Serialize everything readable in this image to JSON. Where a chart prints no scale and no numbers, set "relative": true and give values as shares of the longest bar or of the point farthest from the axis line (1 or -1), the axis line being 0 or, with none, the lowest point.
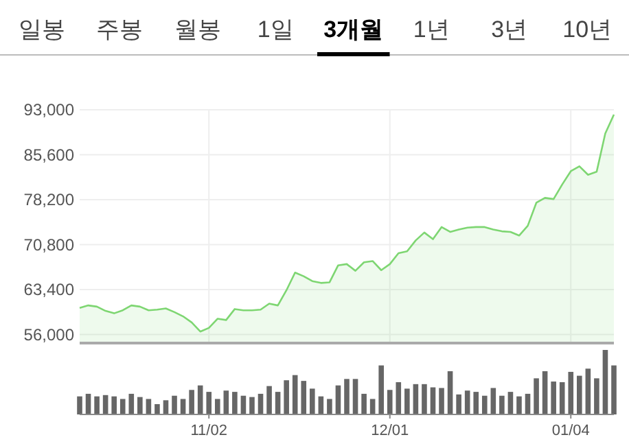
{
  "chart_data": [
    {
      "type": "area",
      "annotations": [
        "일봉",
        "주봉",
        "월봉",
        "1일",
        "3개월",
        "1년",
        "3년",
        "10년"
      ],
      "categories": [
        null,
        null,
        null,
        null,
        null,
        null,
        null,
        null,
        null,
        null,
        null,
        null,
        null,
        null,
        null,
        null,
        null,
        null,
        null,
        null,
        null,
        null,
        null,
        null,
        null,
        null,
        null,
        null,
        null,
        null,
        null,
        null,
        null,
        null,
        null,
        null,
        null,
        null,
        null,
        null,
        null,
        null,
        null,
        null,
        null,
        null,
        null,
        null,
        null,
        null,
        null,
        null,
        null,
        null,
        null,
        null,
        null,
        null,
        null,
        null,
        null,
        null,
        null
      ],
      "series": [
        {
          "color": "#7ed672",
          "values": [
            60400,
            60800,
            60600,
            59900,
            59500,
            60000,
            60800,
            60600,
            60000,
            60100,
            60300,
            59700,
            59000,
            58000,
            56500,
            57100,
            58600,
            58400,
            60200,
            60000,
            60000,
            60100,
            61100,
            60800,
            63300,
            66200,
            65600,
            64800,
            64500,
            64600,
            67400,
            67600,
            66500,
            67900,
            68100,
            66600,
            67600,
            69400,
            69700,
            71500,
            72800,
            71700,
            73700,
            72900,
            73300,
            73600,
            73700,
            73700,
            73300,
            73000,
            72900,
            72300,
            73900,
            77700,
            78500,
            78300,
            80700,
            82900,
            83700,
            82300,
            82800,
            89100,
            92200
          ]
        }
      ],
      "ylim": [
        54600,
        93000
      ],
      "yticks": [
        {
          "value": 56000,
          "label": "56,000"
        },
        {
          "value": 63400,
          "label": "63,400"
        },
        {
          "value": 70800,
          "label": "70,800"
        },
        {
          "value": 78200,
          "label": "78,200"
        },
        {
          "value": 85600,
          "label": "85,600"
        },
        {
          "value": 93000,
          "label": "93,000"
        }
      ],
      "grid": true,
      "tick_labels": "y"
    },
    {
      "type": "bar",
      "relative": true,
      "tick_labels": "x",
      "categories": [
        null,
        null,
        null,
        null,
        null,
        null,
        null,
        null,
        null,
        null,
        null,
        null,
        null,
        null,
        null,
        "11/02",
        null,
        null,
        null,
        null,
        null,
        null,
        null,
        null,
        null,
        null,
        null,
        null,
        null,
        null,
        null,
        null,
        null,
        null,
        null,
        null,
        "12/01",
        null,
        null,
        null,
        null,
        null,
        null,
        null,
        null,
        null,
        null,
        null,
        null,
        null,
        null,
        null,
        null,
        null,
        null,
        null,
        null,
        "01/04",
        null,
        null,
        null,
        null,
        null
      ],
      "series": [
        {
          "color": "#666666",
          "values": [
            0.28,
            0.32,
            0.28,
            0.3,
            0.28,
            0.24,
            0.32,
            0.27,
            0.24,
            0.16,
            0.22,
            0.29,
            0.24,
            0.38,
            0.45,
            0.35,
            0.24,
            0.37,
            0.35,
            0.29,
            0.27,
            0.32,
            0.44,
            0.35,
            0.53,
            0.61,
            0.52,
            0.4,
            0.28,
            0.24,
            0.45,
            0.55,
            0.55,
            0.32,
            0.24,
            0.76,
            0.38,
            0.5,
            0.4,
            0.47,
            0.47,
            0.42,
            0.41,
            0.67,
            0.31,
            0.37,
            0.35,
            0.29,
            0.41,
            0.29,
            0.35,
            0.28,
            0.32,
            0.56,
            0.67,
            0.51,
            0.5,
            0.66,
            0.6,
            0.71,
            0.56,
            1,
            0.76
          ]
        }
      ]
    }
  ]
}
